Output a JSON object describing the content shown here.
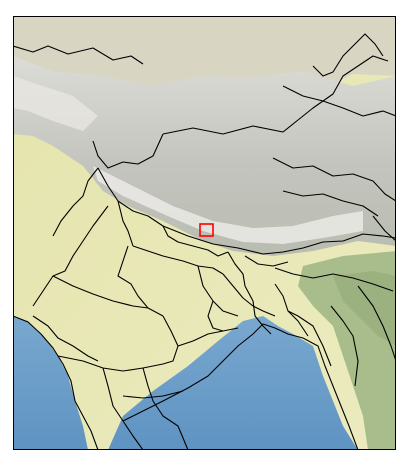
{
  "map": {
    "projection": "plate-carree",
    "basemap": "shaded-relief",
    "boundaries": [
      "country",
      "state"
    ],
    "colors": {
      "ocean": "#6f9fc9",
      "plains": "#e9e8b6",
      "highlands": "#c9c9c3",
      "snow": "#ecebe7",
      "forest": "#a7b98a",
      "border": "#000000",
      "marker": "#ff0000"
    },
    "marker": {
      "shape": "square",
      "label": ""
    }
  }
}
